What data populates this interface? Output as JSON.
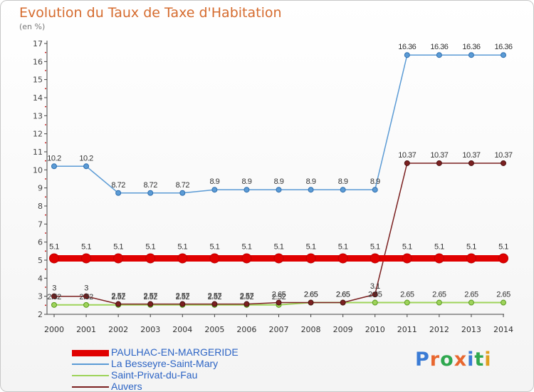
{
  "header": {
    "title": "Evolution du Taux de Taxe d'Habitation",
    "unit": "(en %)"
  },
  "logo": {
    "text": "Proxiti",
    "letter_colors": [
      "#3a7bd5",
      "#e8672f",
      "#2fa84f",
      "#e8672f",
      "#3a7bd5",
      "#2fa84f",
      "#e0a020"
    ]
  },
  "chart_data": {
    "type": "line",
    "x": [
      "2000",
      "2001",
      "2002",
      "2003",
      "2004",
      "2005",
      "2006",
      "2007",
      "2008",
      "2009",
      "2010",
      "2011",
      "2012",
      "2013",
      "2014"
    ],
    "ylim": [
      2,
      17
    ],
    "yticks": [
      2,
      3,
      4,
      5,
      6,
      7,
      8,
      9,
      10,
      11,
      12,
      13,
      14,
      15,
      16,
      17
    ],
    "grid": false,
    "legend_position": "bottom-left",
    "series": [
      {
        "name": "PAULHAC-EN-MARGERIDE",
        "color": "#ff0000",
        "values": [
          5.1,
          5.1,
          5.1,
          5.1,
          5.1,
          5.1,
          5.1,
          5.1,
          5.1,
          5.1,
          5.1,
          5.1,
          5.1,
          5.1,
          5.1
        ],
        "labels": [
          "5.1",
          "5.1",
          "5.1",
          "5.1",
          "5.1",
          "5.1",
          "5.1",
          "5.1",
          "5.1",
          "5.1",
          "5.1",
          "5.1",
          "5.1",
          "5.1",
          "5.1"
        ]
      },
      {
        "name": "La Besseyre-Saint-Mary",
        "color": "#5b9bd5",
        "values": [
          10.2,
          10.2,
          8.72,
          8.72,
          8.72,
          8.9,
          8.9,
          8.9,
          8.9,
          8.9,
          8.9,
          16.36,
          16.36,
          16.36,
          16.36
        ],
        "labels": [
          "10.2",
          "10.2",
          "8.72",
          "8.72",
          "8.72",
          "8.9",
          "8.9",
          "8.9",
          "8.9",
          "8.9",
          "8.9",
          "16.36",
          "16.36",
          "16.36",
          "16.36"
        ]
      },
      {
        "name": "Saint-Privat-du-Fau",
        "color": "#9ed35a",
        "values": [
          2.52,
          2.52,
          2.52,
          2.52,
          2.52,
          2.52,
          2.52,
          2.52,
          2.65,
          2.65,
          2.65,
          2.65,
          2.65,
          2.65,
          2.65
        ],
        "labels": [
          "2.52",
          "2.52",
          "2.52",
          "2.52",
          "2.52",
          "2.52",
          "2.52",
          "2.52",
          "2.65",
          "2.65",
          "2.65",
          "2.65",
          "2.65",
          "2.65",
          "2.65"
        ]
      },
      {
        "name": "Auvers",
        "color": "#7b2020",
        "values": [
          3,
          3,
          2.57,
          2.57,
          2.57,
          2.57,
          2.57,
          2.65,
          2.65,
          2.65,
          3.1,
          10.37,
          10.37,
          10.37,
          10.37
        ],
        "labels": [
          "3",
          "3",
          "2.57",
          "2.57",
          "2.57",
          "2.57",
          "2.57",
          "2.65",
          "2.65",
          "2.65",
          "3.1",
          "10.37",
          "10.37",
          "10.37",
          "10.37"
        ]
      }
    ]
  }
}
